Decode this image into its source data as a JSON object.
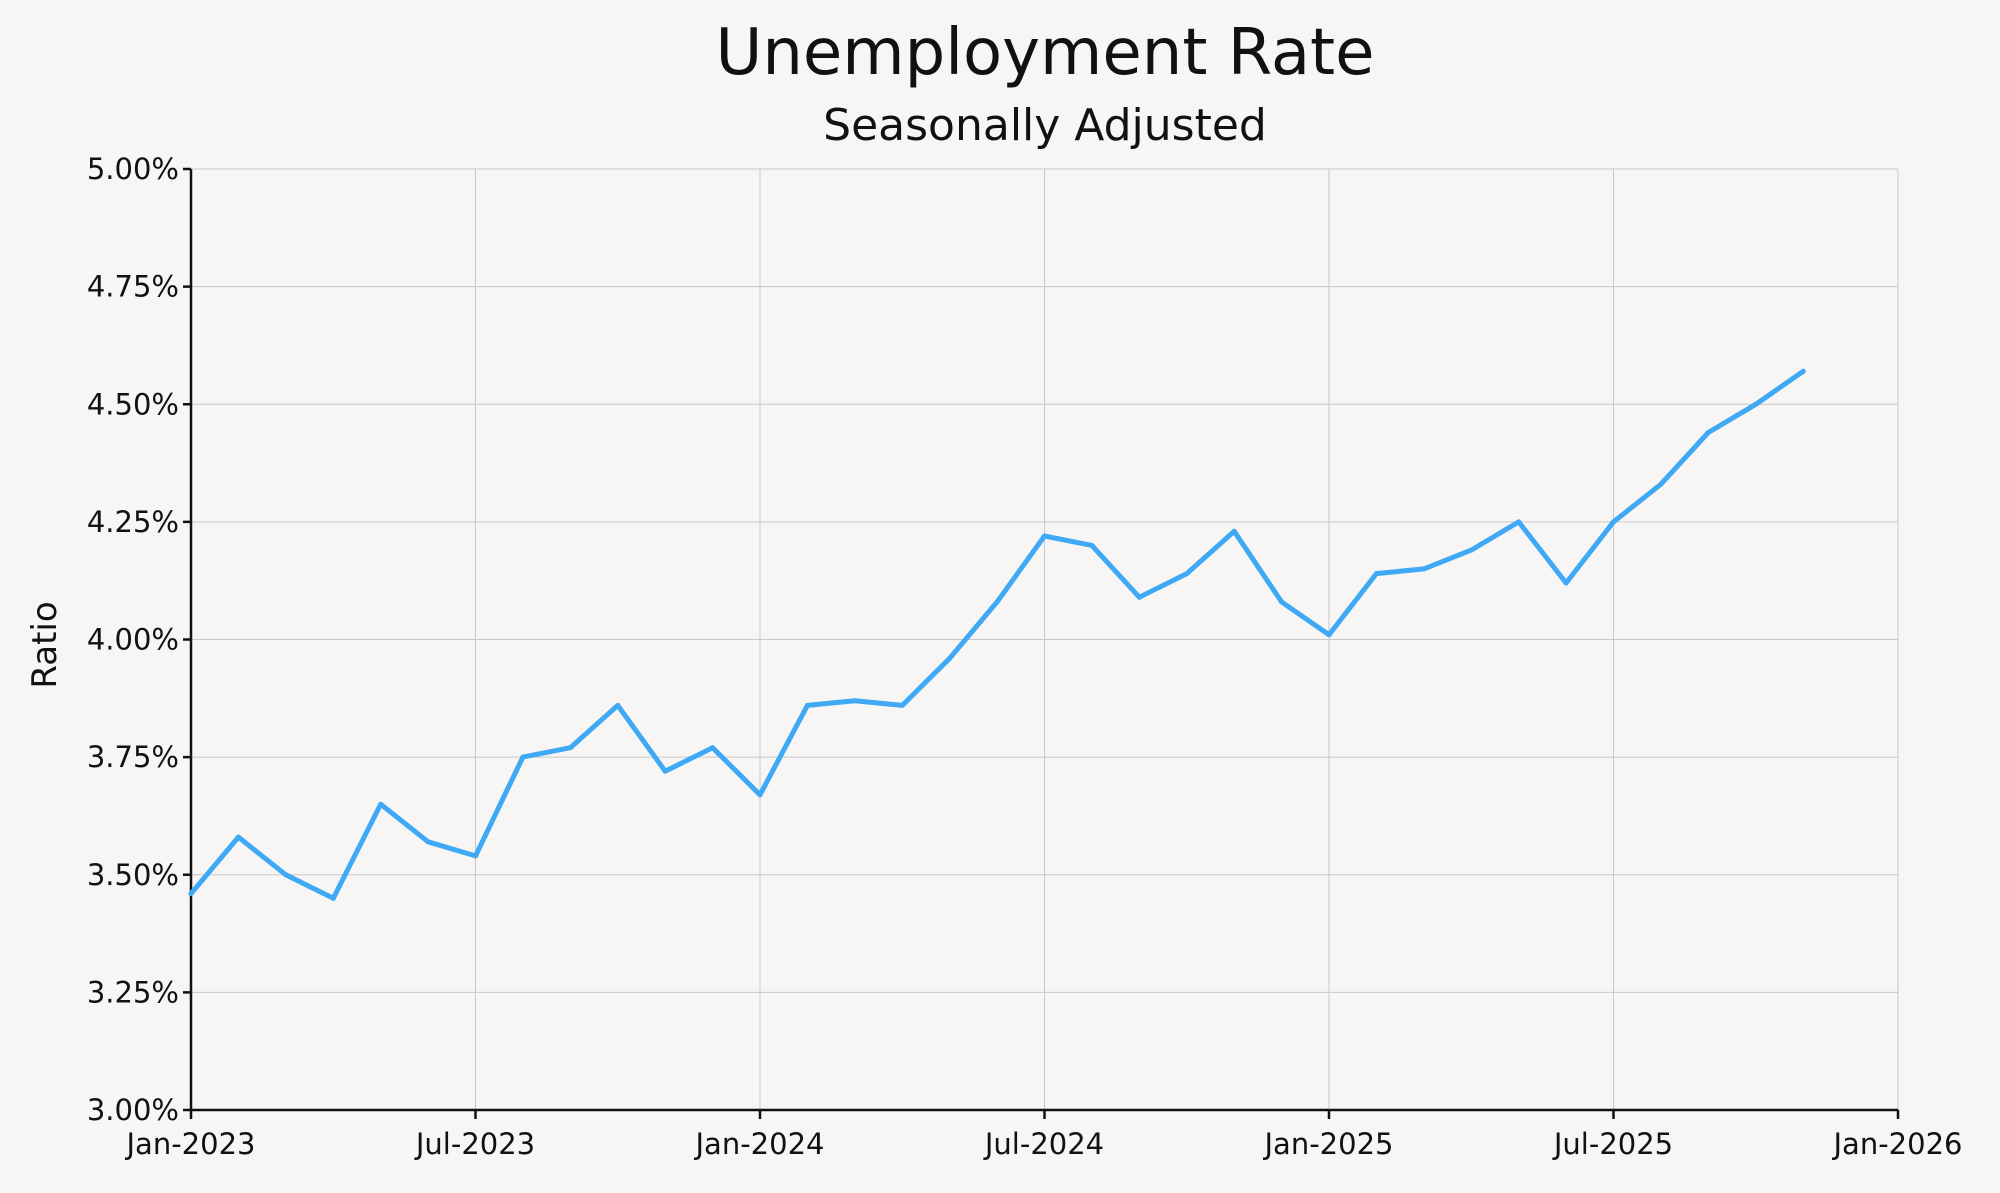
{
  "chart_data": {
    "type": "line",
    "title": "Unemployment Rate",
    "subtitle": "Seasonally Adjusted",
    "xlabel": "",
    "ylabel": "Ratio",
    "ylim": [
      3.0,
      5.0
    ],
    "xlim": [
      "2023-01",
      "2026-01"
    ],
    "y_ticks": [
      3.0,
      3.25,
      3.5,
      3.75,
      4.0,
      4.25,
      4.5,
      4.75,
      5.0
    ],
    "y_tick_labels": [
      "3.00%",
      "3.25%",
      "3.50%",
      "3.75%",
      "4.00%",
      "4.25%",
      "4.50%",
      "4.75%",
      "5.00%"
    ],
    "x_ticks": [
      "2023-01",
      "2023-07",
      "2024-01",
      "2024-07",
      "2025-01",
      "2025-07",
      "2026-01"
    ],
    "x_tick_labels": [
      "Jan-2023",
      "Jul-2023",
      "Jan-2024",
      "Jul-2024",
      "Jan-2025",
      "Jul-2025",
      "Jan-2026"
    ],
    "grid": true,
    "line_color": "#3fa9f5",
    "series": [
      {
        "x": [
          "2023-01",
          "2023-02",
          "2023-03",
          "2023-04",
          "2023-05",
          "2023-06",
          "2023-07",
          "2023-08",
          "2023-09",
          "2023-10",
          "2023-11",
          "2023-12",
          "2024-01",
          "2024-02",
          "2024-03",
          "2024-04",
          "2024-05",
          "2024-06",
          "2024-07",
          "2024-08",
          "2024-09",
          "2024-10",
          "2024-11",
          "2024-12",
          "2025-01",
          "2025-02",
          "2025-03",
          "2025-04",
          "2025-05",
          "2025-06",
          "2025-07",
          "2025-08",
          "2025-09",
          "2025-10",
          "2025-11"
        ],
        "values": [
          3.46,
          3.58,
          3.5,
          3.45,
          3.65,
          3.57,
          3.54,
          3.75,
          3.77,
          3.86,
          3.72,
          3.77,
          3.67,
          3.86,
          3.87,
          3.86,
          3.96,
          4.08,
          4.22,
          4.2,
          4.09,
          4.14,
          4.23,
          4.08,
          4.01,
          4.14,
          4.15,
          4.19,
          4.25,
          4.12,
          4.25,
          4.33,
          4.44,
          4.5,
          4.57
        ]
      }
    ]
  }
}
